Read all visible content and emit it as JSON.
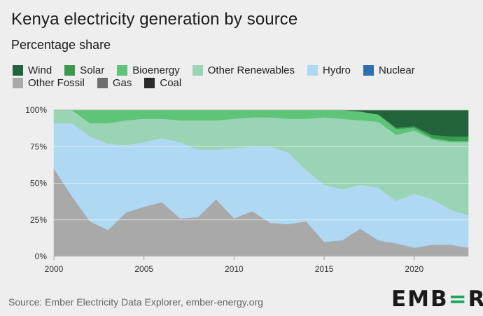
{
  "header": {
    "title": "Kenya electricity generation by source",
    "subtitle": "Percentage share"
  },
  "legend": {
    "row1": [
      {
        "label": "Wind",
        "color": "#23633b"
      },
      {
        "label": "Solar",
        "color": "#3a9a52"
      },
      {
        "label": "Bioenergy",
        "color": "#5ec478"
      },
      {
        "label": "Other Renewables",
        "color": "#9ad4b4"
      },
      {
        "label": "Hydro",
        "color": "#afd8f2"
      },
      {
        "label": "Nuclear",
        "color": "#2f6fad"
      }
    ],
    "row2": [
      {
        "label": "Other Fossil",
        "color": "#a9a9a9"
      },
      {
        "label": "Gas",
        "color": "#6e6e6e"
      },
      {
        "label": "Coal",
        "color": "#2b2b2b"
      }
    ]
  },
  "footer": {
    "source": "Source: Ember Electricity Data Explorer, ember-energy.org",
    "logo_pre": "EMB",
    "logo_accent": "=",
    "logo_post": "R"
  },
  "chart_data": {
    "type": "area",
    "stacked": true,
    "ylim": [
      0,
      100
    ],
    "xlim": [
      2000,
      2023
    ],
    "x_ticks": [
      2000,
      2005,
      2010,
      2015,
      2020
    ],
    "y_ticks": [
      0,
      25,
      50,
      75,
      100
    ],
    "y_tick_labels": [
      "0%",
      "25%",
      "50%",
      "75%",
      "100%"
    ],
    "x": [
      2000,
      2001,
      2002,
      2003,
      2004,
      2005,
      2006,
      2007,
      2008,
      2009,
      2010,
      2011,
      2012,
      2013,
      2014,
      2015,
      2016,
      2017,
      2018,
      2019,
      2020,
      2021,
      2022,
      2023
    ],
    "series": [
      {
        "name": "Other Fossil",
        "color": "#a9a9a9",
        "values": [
          60,
          41,
          24,
          18,
          30,
          34,
          37,
          26,
          27,
          39,
          26,
          31,
          23,
          22,
          24,
          10,
          11,
          19,
          11,
          9,
          6,
          8,
          8,
          6
        ]
      },
      {
        "name": "Hydro",
        "color": "#afd8f2",
        "values": [
          31,
          50,
          58,
          59,
          46,
          44,
          44,
          52,
          46,
          34,
          48,
          44,
          52,
          49,
          35,
          39,
          35,
          30,
          36,
          29,
          37,
          31,
          24,
          22
        ]
      },
      {
        "name": "Other Renewables",
        "color": "#9ad4b4",
        "values": [
          9,
          9,
          9,
          14,
          17,
          16,
          13,
          15,
          20,
          20,
          20,
          20,
          20,
          23,
          35,
          46,
          48,
          44,
          45,
          45,
          43,
          41,
          46,
          50
        ]
      },
      {
        "name": "Bioenergy",
        "color": "#5ec478",
        "values": [
          0,
          0,
          9,
          9,
          7,
          6,
          6,
          7,
          7,
          7,
          6,
          5,
          5,
          6,
          6,
          5,
          6,
          6,
          5,
          4,
          2,
          1,
          1,
          1
        ]
      },
      {
        "name": "Solar",
        "color": "#3a9a52",
        "values": [
          0,
          0,
          0,
          0,
          0,
          0,
          0,
          0,
          0,
          0,
          0,
          0,
          0,
          0,
          0,
          0,
          0,
          0,
          0,
          1,
          1,
          2,
          3,
          3
        ]
      },
      {
        "name": "Wind",
        "color": "#23633b",
        "values": [
          0,
          0,
          0,
          0,
          0,
          0,
          0,
          0,
          0,
          0,
          0,
          0,
          0,
          0,
          0,
          0,
          0,
          1,
          3,
          12,
          11,
          17,
          18,
          18
        ]
      }
    ]
  }
}
